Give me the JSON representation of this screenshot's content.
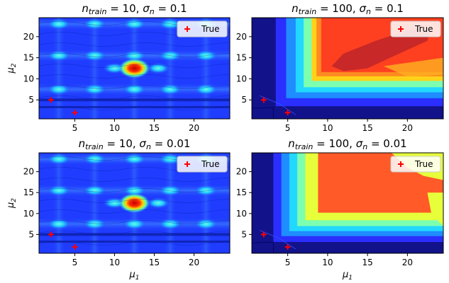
{
  "chart_data": [
    {
      "type": "heatmap",
      "title_n": "10",
      "title_sigma": "0.1",
      "xlabel": "",
      "ylabel": "μ",
      "xlim": [
        0.5,
        24.5
      ],
      "ylim": [
        0.5,
        24.5
      ],
      "xticks": [
        5,
        10,
        15,
        20
      ],
      "yticks": [
        5,
        10,
        15,
        20
      ],
      "legend": {
        "label": "True",
        "placement": "top-right"
      },
      "true_points": [
        {
          "x": 2,
          "y": 5
        },
        {
          "x": 5,
          "y": 2
        }
      ],
      "peak": {
        "x": 12.5,
        "y": 12.5
      }
    },
    {
      "type": "heatmap",
      "title_n": "100",
      "title_sigma": "0.1",
      "xlabel": "",
      "ylabel": "",
      "xlim": [
        0.5,
        24.5
      ],
      "ylim": [
        0.5,
        24.5
      ],
      "xticks": [
        5,
        10,
        15,
        20
      ],
      "yticks": [
        5,
        10,
        15,
        20
      ],
      "legend": {
        "label": "True",
        "placement": "top-right"
      },
      "true_points": [
        {
          "x": 2,
          "y": 5
        },
        {
          "x": 5,
          "y": 2
        }
      ]
    },
    {
      "type": "heatmap",
      "title_n": "10",
      "title_sigma": "0.01",
      "xlabel": "μ",
      "ylabel": "μ",
      "xlim": [
        0.5,
        24.5
      ],
      "ylim": [
        0.5,
        24.5
      ],
      "xticks": [
        5,
        10,
        15,
        20
      ],
      "yticks": [
        5,
        10,
        15,
        20
      ],
      "legend": {
        "label": "True",
        "placement": "top-right"
      },
      "true_points": [
        {
          "x": 2,
          "y": 5
        },
        {
          "x": 5,
          "y": 2
        }
      ],
      "peak": {
        "x": 12.5,
        "y": 12.5
      }
    },
    {
      "type": "heatmap",
      "title_n": "100",
      "title_sigma": "0.01",
      "xlabel": "μ",
      "ylabel": "",
      "xlim": [
        0.5,
        24.5
      ],
      "ylim": [
        0.5,
        24.5
      ],
      "xticks": [
        5,
        10,
        15,
        20
      ],
      "yticks": [
        5,
        10,
        15,
        20
      ],
      "legend": {
        "label": "True",
        "placement": "top-right"
      },
      "true_points": [
        {
          "x": 2,
          "y": 5
        },
        {
          "x": 5,
          "y": 2
        }
      ]
    }
  ]
}
